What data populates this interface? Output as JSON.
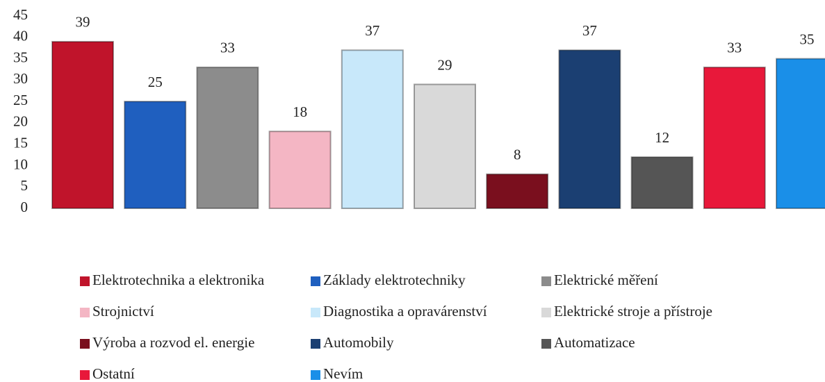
{
  "chart_data": {
    "type": "bar",
    "series": [
      {
        "name": "Elektrotechnika a elektronika",
        "color": "#c0142b",
        "values": [
          39
        ]
      },
      {
        "name": "Základy elektrotechniky",
        "color": "#1f5fbf",
        "values": [
          25
        ]
      },
      {
        "name": "Elektrické měření",
        "color": "#8c8c8c",
        "values": [
          33
        ]
      },
      {
        "name": "Strojnictví",
        "color": "#f4b6c4",
        "values": [
          18
        ]
      },
      {
        "name": "Diagnostika a opravárenství",
        "color": "#c8e8fa",
        "values": [
          37
        ]
      },
      {
        "name": "Elektrické stroje a přístroje",
        "color": "#d9d9d9",
        "values": [
          29
        ]
      },
      {
        "name": "Výroba a rozvod el. energie",
        "color": "#7a0f1e",
        "values": [
          8
        ]
      },
      {
        "name": "Automobily",
        "color": "#1b3f72",
        "values": [
          37
        ]
      },
      {
        "name": "Automatizace",
        "color": "#555555",
        "values": [
          12
        ]
      },
      {
        "name": "Ostatní",
        "color": "#e8183a",
        "values": [
          33
        ]
      },
      {
        "name": "Nevím",
        "color": "#1a8fe8",
        "values": [
          35
        ]
      }
    ],
    "ylim": [
      0,
      45
    ],
    "yticks": [
      0,
      5,
      10,
      15,
      20,
      25,
      30,
      35,
      40,
      45
    ],
    "grid": false,
    "legend": "bottom"
  }
}
